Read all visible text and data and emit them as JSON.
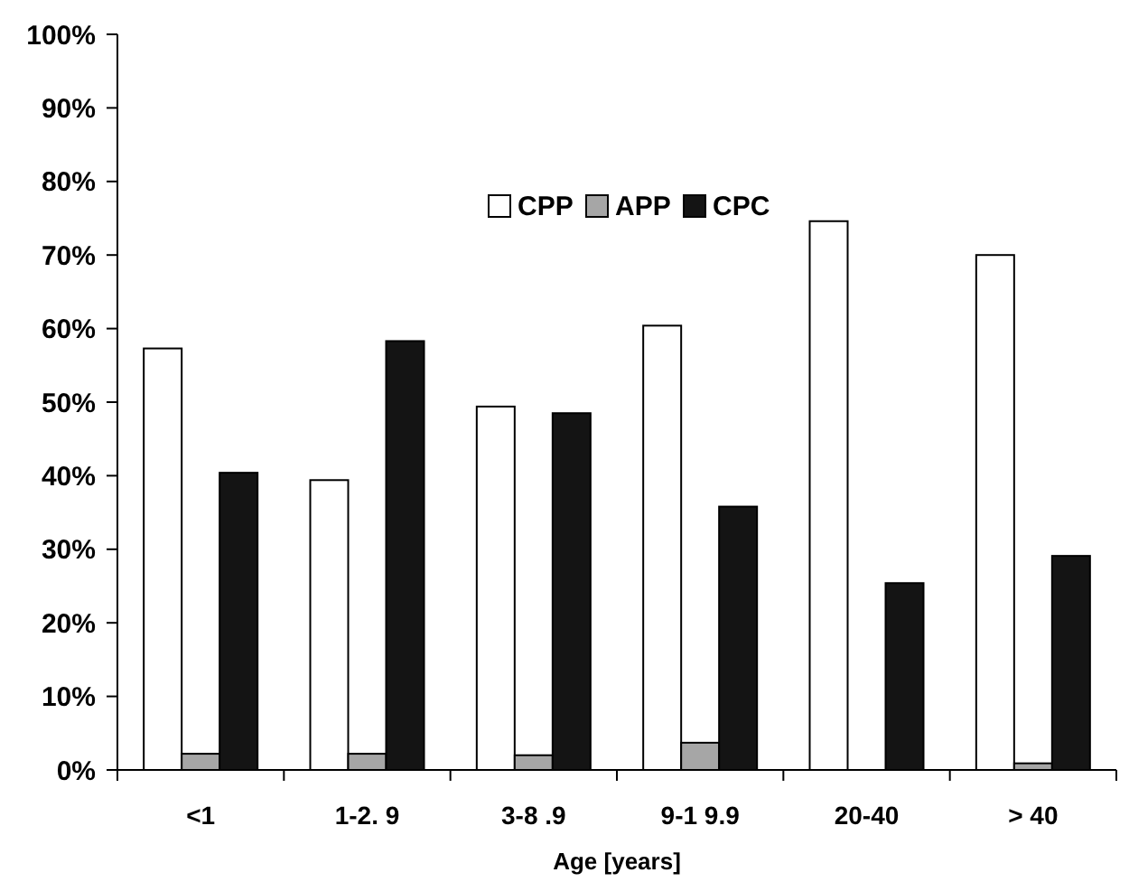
{
  "chart_data": {
    "type": "bar",
    "xlabel": "Age [years]",
    "categories": [
      "<1",
      "1-2. 9",
      "3-8 .9",
      "9-1 9.9",
      "20-40",
      "> 40"
    ],
    "series": [
      {
        "name": "CPP",
        "color": "#ffffff",
        "values": [
          57.3,
          39.4,
          49.4,
          60.4,
          74.6,
          70.0
        ]
      },
      {
        "name": "APP",
        "color": "#a6a6a6",
        "values": [
          2.2,
          2.2,
          2.0,
          3.7,
          0,
          0.9
        ]
      },
      {
        "name": "CPC",
        "color": "#141414",
        "values": [
          40.4,
          58.3,
          48.5,
          35.8,
          25.4,
          29.1
        ]
      }
    ],
    "ylim": [
      0,
      100
    ],
    "yticks": [
      {
        "value": 0,
        "label": "0%"
      },
      {
        "value": 10,
        "label": "10%"
      },
      {
        "value": 20,
        "label": "20%"
      },
      {
        "value": 30,
        "label": "30%"
      },
      {
        "value": 40,
        "label": "40%"
      },
      {
        "value": 50,
        "label": "50%"
      },
      {
        "value": 60,
        "label": "60%"
      },
      {
        "value": 70,
        "label": "70%"
      },
      {
        "value": 80,
        "label": "80%"
      },
      {
        "value": 90,
        "label": "90%"
      },
      {
        "value": 100,
        "label": "100%"
      }
    ],
    "grid": false,
    "legend": "top"
  }
}
